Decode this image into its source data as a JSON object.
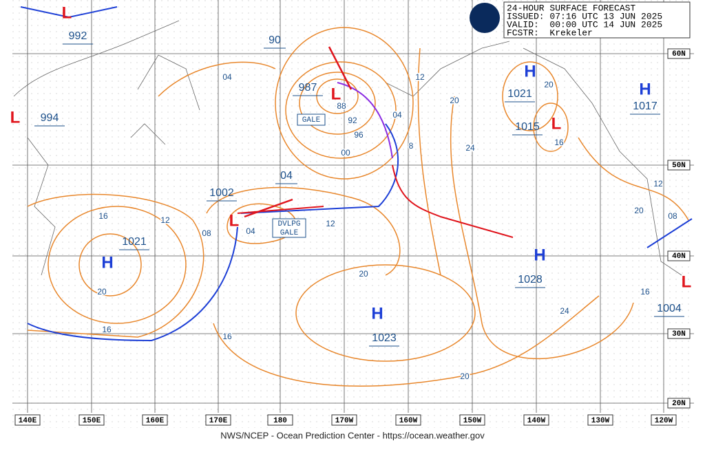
{
  "header": {
    "lines": [
      "24-HOUR SURFACE FORECAST",
      "ISSUED: 07:16 UTC 13 JUN 2025",
      "VALID:  00:00 UTC 14 JUN 2025",
      "FCSTR:  Krekeler"
    ]
  },
  "centers": [
    {
      "symbol": "L",
      "pressure": "992"
    },
    {
      "symbol": "L",
      "pressure": "987"
    },
    {
      "symbol": "L",
      "pressure": "994"
    },
    {
      "symbol": "H",
      "pressure": "1021"
    },
    {
      "symbol": "H",
      "pressure": "1017"
    },
    {
      "symbol": "L",
      "pressure": "1015"
    },
    {
      "symbol": "L",
      "pressure": "1002"
    },
    {
      "symbol": "H",
      "pressure": "1021"
    },
    {
      "symbol": "H",
      "pressure": "1028"
    },
    {
      "symbol": "H",
      "pressure": "1023"
    },
    {
      "symbol": "L",
      "pressure": "1004"
    }
  ],
  "boxed_labels": [
    "90",
    "04"
  ],
  "warnings": [
    "GALE",
    "DVLPG",
    "GALE"
  ],
  "isobar_labels": [
    "04",
    "12",
    "20",
    "20",
    "88",
    "92",
    "04",
    "96",
    "8",
    "16",
    "00",
    "24",
    "12",
    "20",
    "08",
    "16",
    "12",
    "08",
    "04",
    "12",
    "20",
    "20",
    "16",
    "24",
    "16",
    "16",
    "20"
  ],
  "longitudes": [
    "140E",
    "150E",
    "160E",
    "170E",
    "180",
    "170W",
    "160W",
    "150W",
    "140W",
    "130W",
    "120W"
  ],
  "latitudes": [
    "60N",
    "50N",
    "40N",
    "30N",
    "20N"
  ],
  "footer": "NWS/NCEP - Ocean Prediction Center - https://ocean.weather.gov"
}
